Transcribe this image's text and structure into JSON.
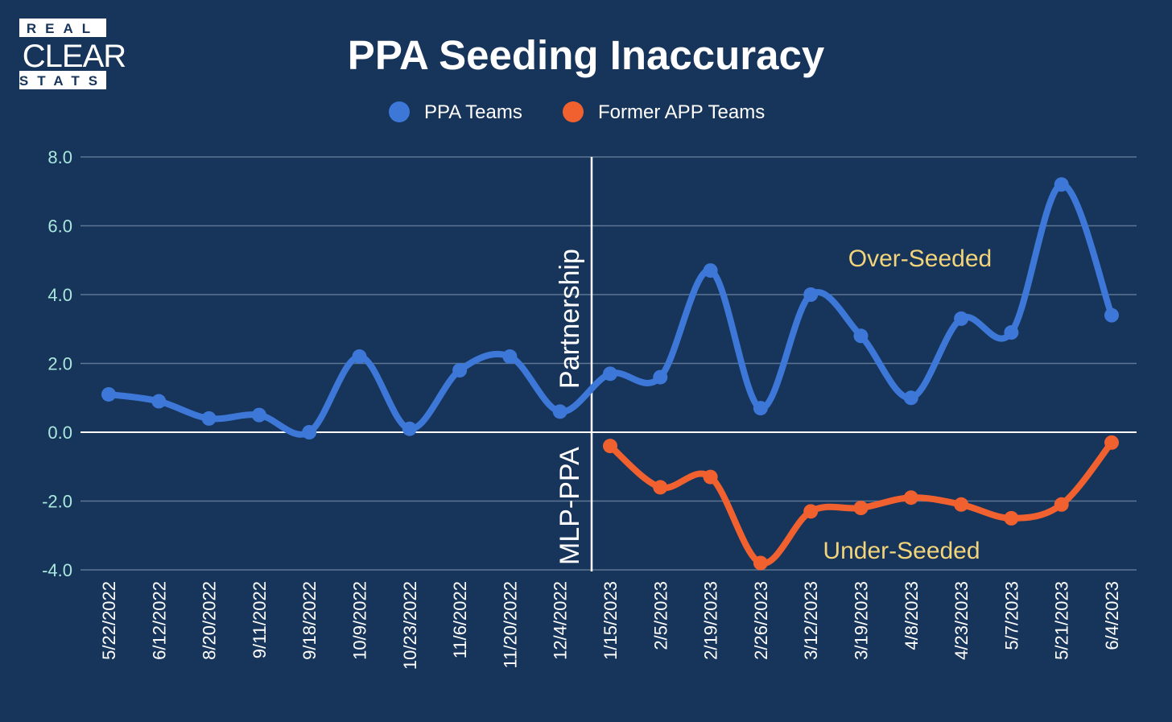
{
  "logo": {
    "line1": "REAL",
    "line2": "CLEAR",
    "line3": "STATS"
  },
  "chart_data": {
    "type": "line",
    "title": "PPA Seeding Inaccuracy",
    "categories": [
      "5/22/2022",
      "6/12/2022",
      "8/20/2022",
      "9/11/2022",
      "9/18/2022",
      "10/9/2022",
      "10/23/2022",
      "11/6/2022",
      "11/20/2022",
      "12/4/2022",
      "1/15/2023",
      "2/5/2023",
      "2/19/2023",
      "2/26/2023",
      "3/12/2023",
      "3/19/2023",
      "4/8/2023",
      "4/23/2023",
      "5/7/2023",
      "5/21/2023",
      "6/4/2023"
    ],
    "series": [
      {
        "name": "PPA Teams",
        "color": "#3d78d8",
        "values": [
          1.1,
          0.9,
          0.4,
          0.5,
          0.0,
          2.2,
          0.1,
          1.8,
          2.2,
          0.6,
          1.7,
          1.6,
          4.7,
          0.7,
          4.0,
          2.8,
          1.0,
          3.3,
          2.9,
          7.2,
          3.4
        ]
      },
      {
        "name": "Former APP Teams",
        "color": "#f0612f",
        "values": [
          null,
          null,
          null,
          null,
          null,
          null,
          null,
          null,
          null,
          null,
          -0.4,
          -1.6,
          -1.3,
          -3.8,
          -2.3,
          -2.2,
          -1.9,
          -2.1,
          -2.5,
          -2.1,
          -0.3
        ]
      }
    ],
    "ylim": [
      -4.0,
      8.0
    ],
    "yticks": [
      "-4.0",
      "-2.0",
      "0.0",
      "2.0",
      "4.0",
      "6.0",
      "8.0"
    ],
    "grid": true,
    "legend_position": "top",
    "annotations": {
      "divider_label_top": "Partnership",
      "divider_label_bottom": "MLP-PPA",
      "over_label": "Over-Seeded",
      "under_label": "Under-Seeded"
    }
  }
}
